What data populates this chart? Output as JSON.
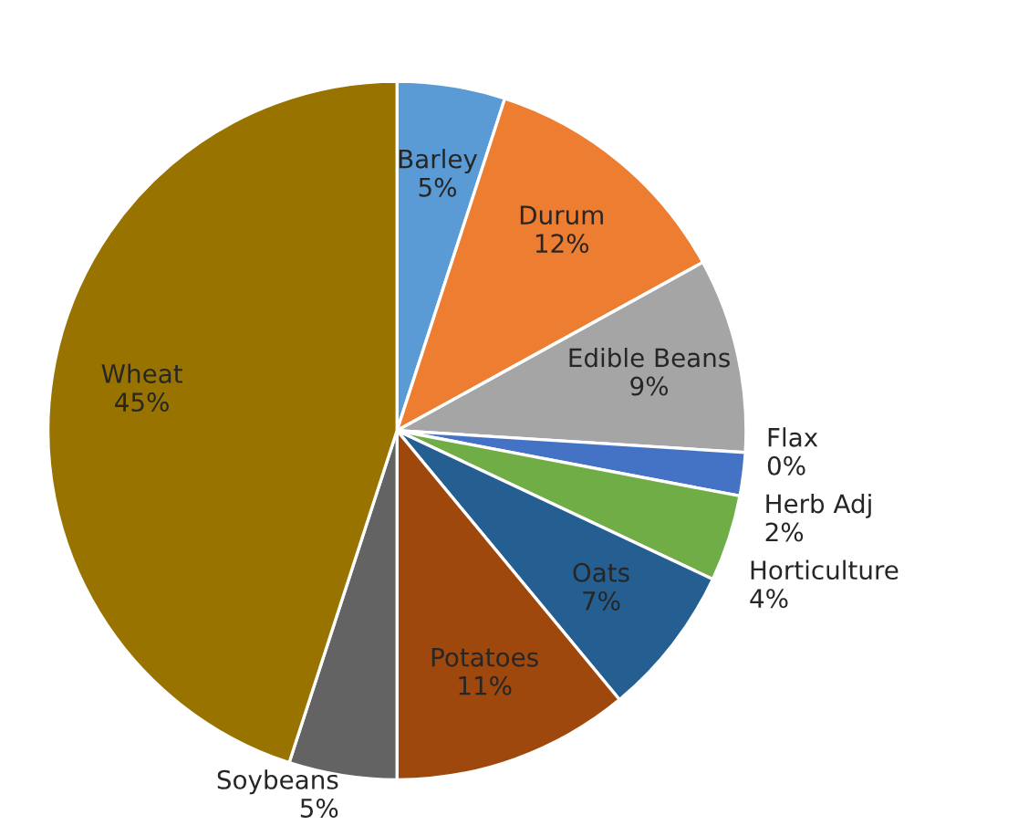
{
  "chart_data": {
    "type": "pie",
    "categories": [
      "Barley",
      "Durum",
      "Edible Beans",
      "Flax",
      "Herb Adj",
      "Horticulture",
      "Oats",
      "Potatoes",
      "Soybeans",
      "Wheat"
    ],
    "values": [
      5,
      12,
      9,
      0,
      2,
      4,
      7,
      11,
      5,
      45
    ],
    "value_labels": [
      "5%",
      "12%",
      "9%",
      "0%",
      "2%",
      "4%",
      "7%",
      "11%",
      "5%",
      "45%"
    ],
    "colors": [
      "#5b9bd5",
      "#ed7d31",
      "#a5a5a5",
      "#ffc000",
      "#4472c4",
      "#70ad47",
      "#255e91",
      "#9e480e",
      "#636363",
      "#997300"
    ],
    "legend": false
  }
}
